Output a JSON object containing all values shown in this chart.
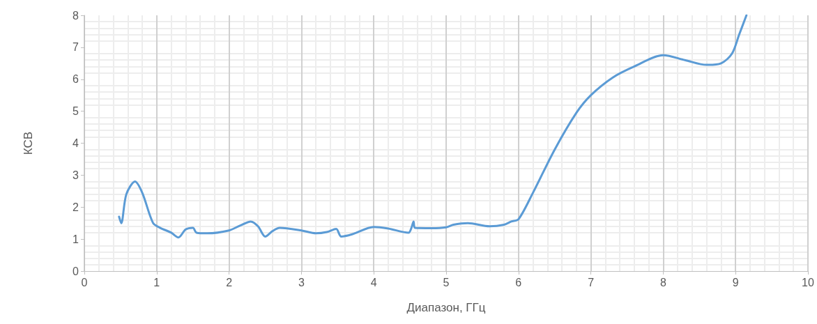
{
  "chart_data": {
    "type": "line",
    "xlabel": "Диапазон, ГГц",
    "ylabel": "КСВ",
    "xlim": [
      0,
      10
    ],
    "xticks": [
      0,
      1,
      2,
      3,
      4,
      5,
      6,
      7,
      8,
      9,
      10
    ],
    "ylim": [
      0,
      8
    ],
    "yticks": [
      0,
      1,
      2,
      3,
      4,
      5,
      6,
      7,
      8
    ],
    "grid": true,
    "marker": "none",
    "line_style": "solid",
    "series": [
      {
        "color": "#5b9bd5",
        "x": [
          0.48,
          0.51,
          0.58,
          0.7,
          0.8,
          0.95,
          1.05,
          1.2,
          1.3,
          1.4,
          1.5,
          1.55,
          1.7,
          2.0,
          2.15,
          2.3,
          2.4,
          2.5,
          2.6,
          2.7,
          3.0,
          3.2,
          3.35,
          3.48,
          3.55,
          3.7,
          4.0,
          4.2,
          4.48,
          4.52,
          4.55,
          4.57,
          4.8,
          5.0,
          5.1,
          5.3,
          5.6,
          5.8,
          5.9,
          6.0,
          6.2,
          6.5,
          6.8,
          7.0,
          7.3,
          7.6,
          8.0,
          8.3,
          8.6,
          8.8,
          8.95,
          9.05,
          9.15
        ],
        "values": [
          1.7,
          1.5,
          2.4,
          2.8,
          2.45,
          1.5,
          1.35,
          1.2,
          1.05,
          1.3,
          1.35,
          1.2,
          1.18,
          1.27,
          1.42,
          1.55,
          1.4,
          1.08,
          1.25,
          1.35,
          1.27,
          1.18,
          1.22,
          1.32,
          1.08,
          1.15,
          1.38,
          1.33,
          1.2,
          1.35,
          1.55,
          1.35,
          1.34,
          1.37,
          1.45,
          1.5,
          1.4,
          1.45,
          1.55,
          1.62,
          2.45,
          3.8,
          4.95,
          5.5,
          6.05,
          6.4,
          6.75,
          6.6,
          6.45,
          6.5,
          6.8,
          7.4,
          8.0
        ]
      }
    ]
  }
}
